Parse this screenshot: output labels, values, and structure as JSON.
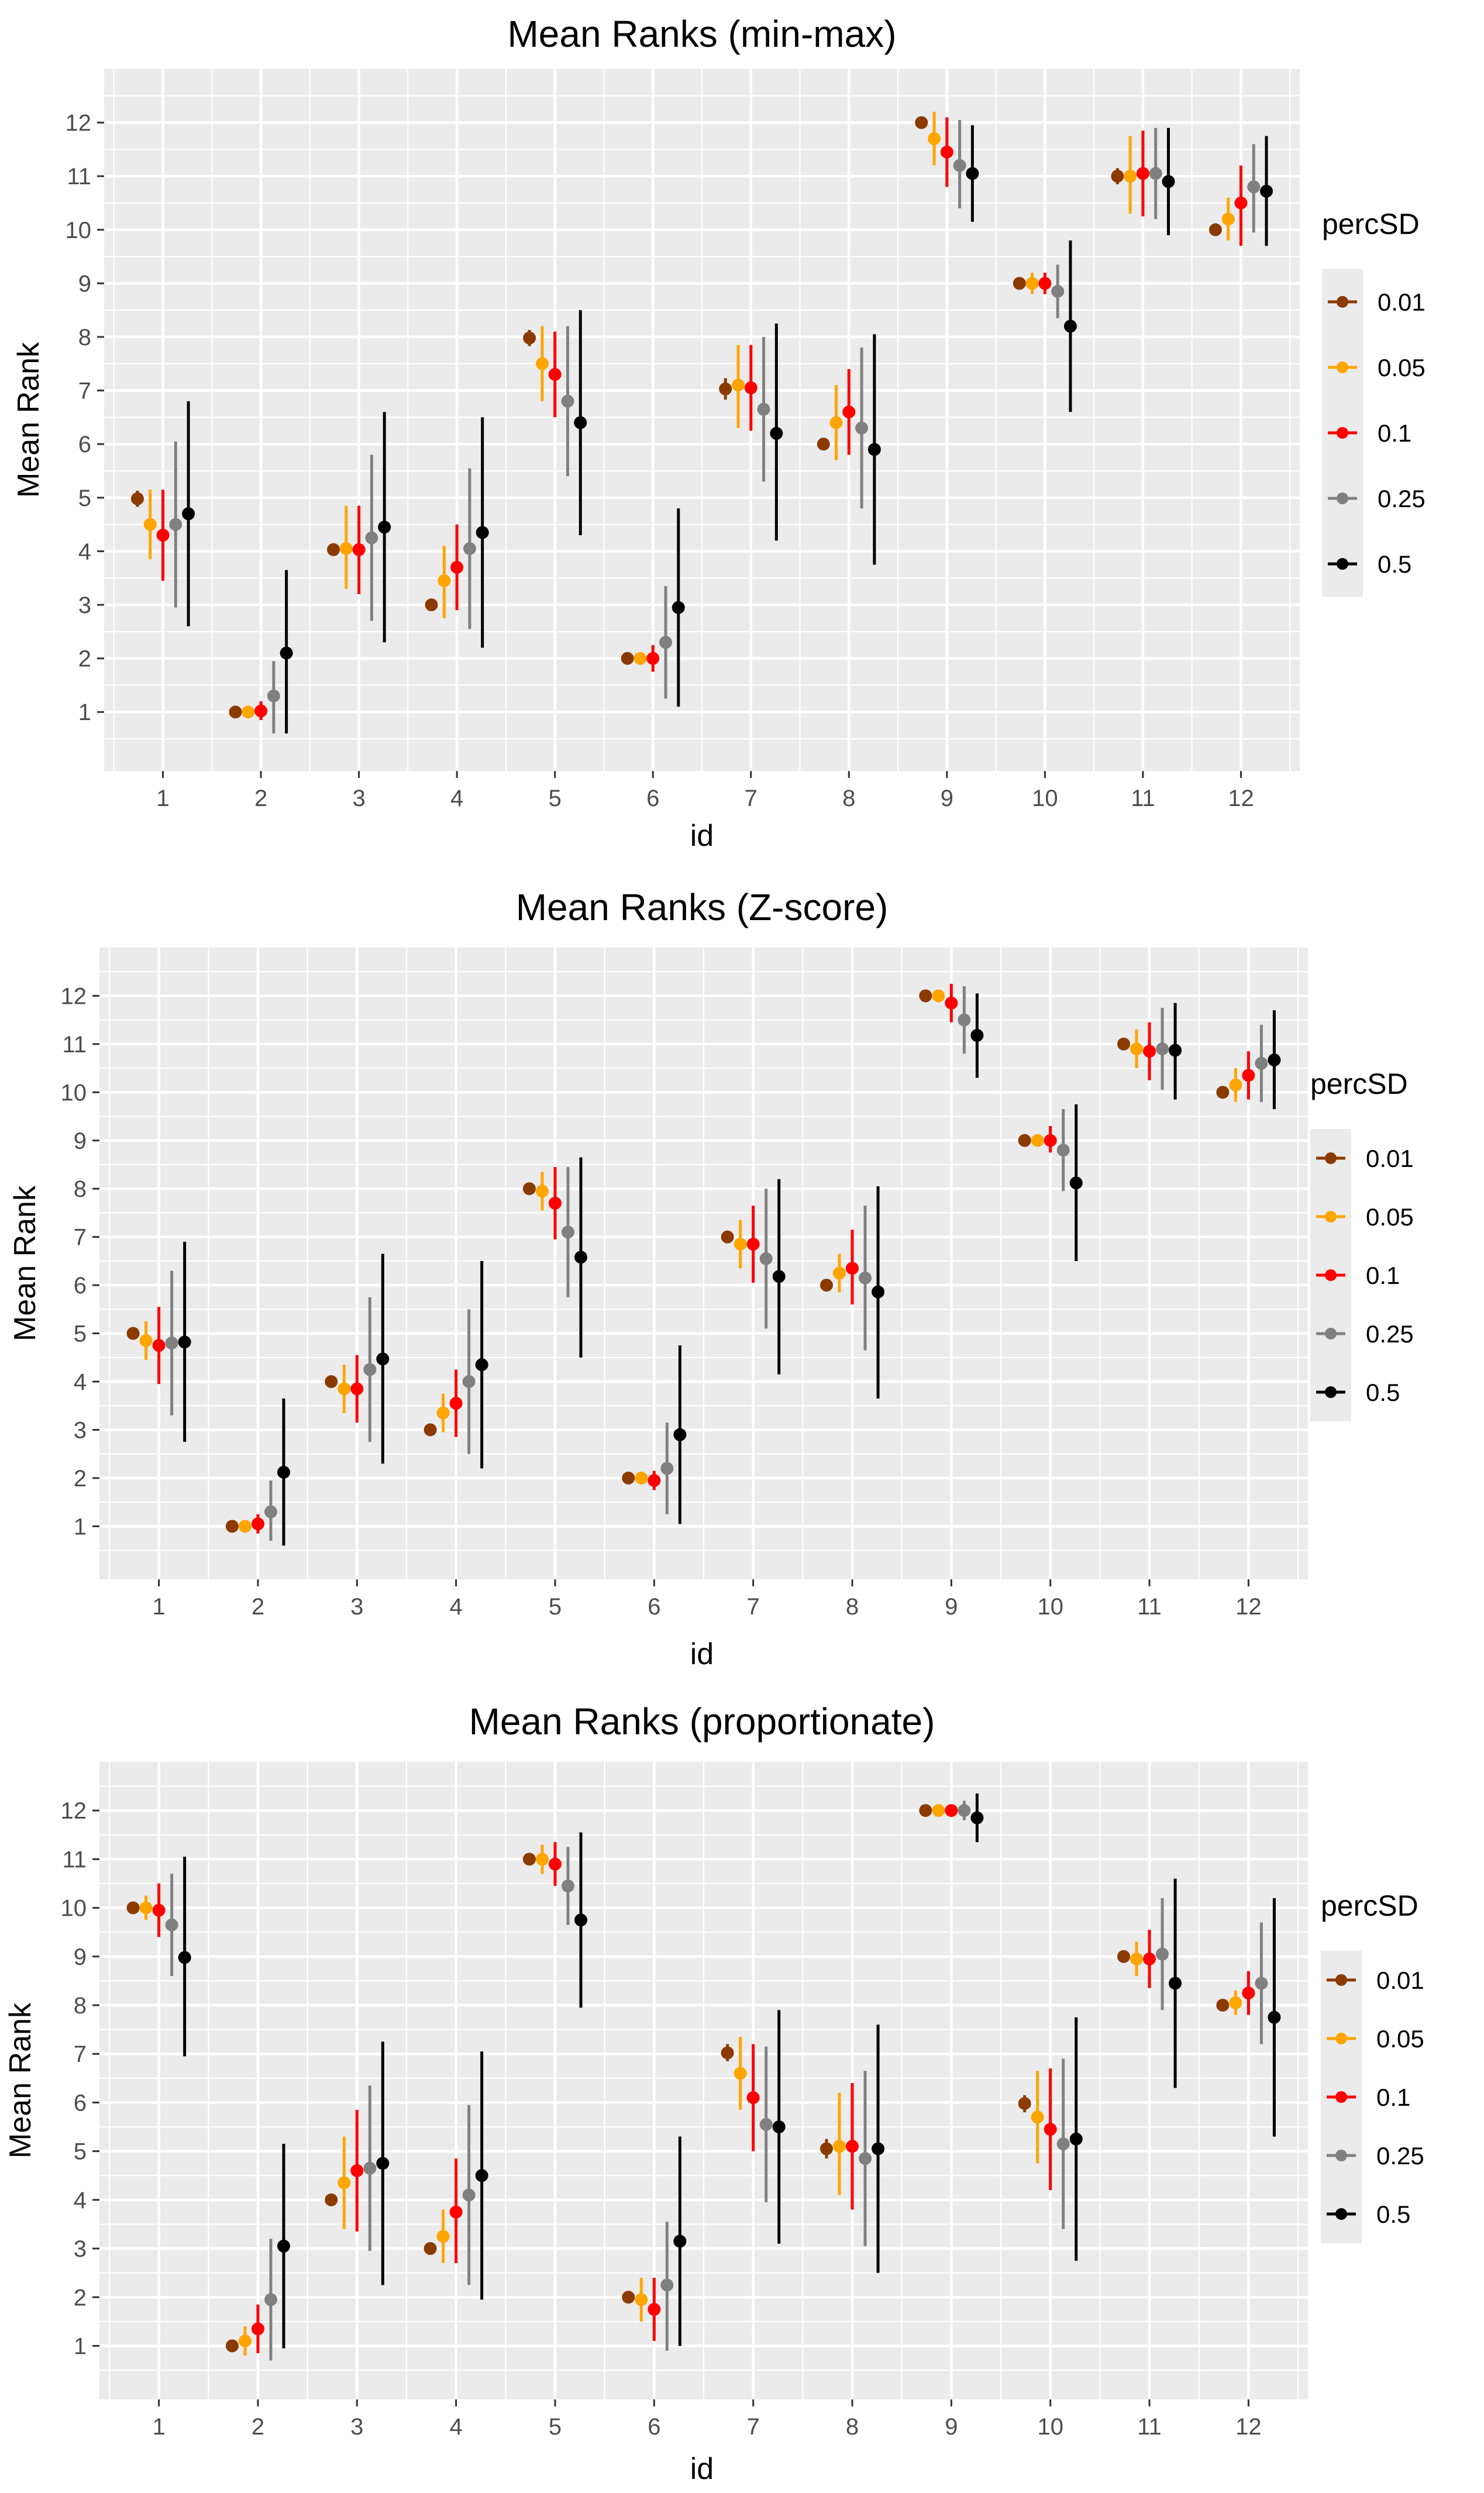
{
  "colors": {
    "panel_bg": "#EBEBEB",
    "grid": "#FFFFFF",
    "series": [
      "#8B3A00",
      "#FFA500",
      "#FF0000",
      "#808080",
      "#000000"
    ]
  },
  "chart_data": [
    {
      "type": "scatter",
      "title": "Mean Ranks (min-max)",
      "xlabel": "id",
      "ylabel": "Mean Rank",
      "categories": [
        "1",
        "2",
        "3",
        "4",
        "5",
        "6",
        "7",
        "8",
        "9",
        "10",
        "11",
        "12"
      ],
      "y_ticks": [
        "1",
        "2",
        "3",
        "4",
        "5",
        "6",
        "7",
        "8",
        "9",
        "10",
        "11",
        "12"
      ],
      "ylim": [
        -0.1,
        13.0
      ],
      "legend_title": "percSD",
      "legend_position": "right",
      "series": [
        {
          "name": "0.01",
          "values": [
            4.98,
            1.0,
            4.03,
            3.0,
            7.98,
            2.0,
            7.03,
            6.0,
            12.0,
            9.0,
            11.0,
            10.0
          ],
          "lower": [
            4.83,
            0.9,
            3.93,
            2.95,
            7.83,
            1.95,
            6.83,
            5.95,
            11.95,
            8.95,
            10.85,
            9.95
          ],
          "upper": [
            5.13,
            1.1,
            4.13,
            3.05,
            8.13,
            2.05,
            7.23,
            6.05,
            12.05,
            9.05,
            11.15,
            10.05
          ]
        },
        {
          "name": "0.05",
          "values": [
            4.5,
            1.0,
            4.05,
            3.45,
            7.5,
            2.0,
            7.1,
            6.4,
            11.7,
            9.0,
            11.0,
            10.2
          ],
          "lower": [
            3.85,
            0.95,
            3.3,
            2.75,
            6.8,
            1.9,
            6.3,
            5.7,
            11.2,
            8.8,
            10.3,
            9.8
          ],
          "upper": [
            5.15,
            1.1,
            4.85,
            4.1,
            8.2,
            2.1,
            7.85,
            7.1,
            12.2,
            9.2,
            11.75,
            10.6
          ]
        },
        {
          "name": "0.1",
          "values": [
            4.3,
            1.02,
            4.03,
            3.7,
            7.3,
            2.0,
            7.05,
            6.6,
            11.45,
            9.0,
            11.05,
            10.5
          ],
          "lower": [
            3.45,
            0.85,
            3.2,
            2.9,
            6.5,
            1.75,
            6.25,
            5.8,
            10.8,
            8.8,
            10.25,
            9.7
          ],
          "upper": [
            5.15,
            1.2,
            4.85,
            4.5,
            8.1,
            2.25,
            7.85,
            7.4,
            12.1,
            9.2,
            11.85,
            11.2
          ]
        },
        {
          "name": "0.25",
          "values": [
            4.5,
            1.3,
            4.25,
            4.05,
            6.8,
            2.3,
            6.65,
            6.3,
            11.2,
            8.85,
            11.05,
            10.8
          ],
          "lower": [
            2.95,
            0.6,
            2.7,
            2.55,
            5.4,
            1.25,
            5.3,
            4.8,
            10.4,
            8.35,
            10.2,
            9.95
          ],
          "upper": [
            6.05,
            1.95,
            5.8,
            5.55,
            8.2,
            3.35,
            8.0,
            7.8,
            12.05,
            9.35,
            11.9,
            11.6
          ]
        },
        {
          "name": "0.5",
          "values": [
            4.7,
            2.1,
            4.45,
            4.35,
            6.4,
            2.95,
            6.2,
            5.9,
            11.05,
            8.2,
            10.9,
            10.72
          ],
          "lower": [
            2.6,
            0.6,
            2.3,
            2.2,
            4.3,
            1.1,
            4.2,
            3.75,
            10.15,
            6.6,
            9.9,
            9.7
          ],
          "upper": [
            6.8,
            3.65,
            6.6,
            6.5,
            8.5,
            4.8,
            8.25,
            8.05,
            11.95,
            9.8,
            11.9,
            11.75
          ]
        }
      ]
    },
    {
      "type": "scatter",
      "title": "Mean Ranks (Z-score)",
      "xlabel": "id",
      "ylabel": "Mean Rank",
      "categories": [
        "1",
        "2",
        "3",
        "4",
        "5",
        "6",
        "7",
        "8",
        "9",
        "10",
        "11",
        "12"
      ],
      "y_ticks": [
        "1",
        "2",
        "3",
        "4",
        "5",
        "6",
        "7",
        "8",
        "9",
        "10",
        "11",
        "12"
      ],
      "ylim": [
        -0.1,
        13.0
      ],
      "legend_title": "percSD",
      "legend_position": "right",
      "series": [
        {
          "name": "0.01",
          "values": [
            5.0,
            1.0,
            4.0,
            3.0,
            8.0,
            2.0,
            7.0,
            6.0,
            12.0,
            9.0,
            11.0,
            10.0
          ],
          "lower": [
            4.95,
            0.95,
            3.95,
            2.95,
            7.95,
            1.95,
            6.95,
            5.95,
            11.95,
            8.95,
            10.95,
            9.95
          ],
          "upper": [
            5.05,
            1.05,
            4.05,
            3.05,
            8.05,
            2.05,
            7.05,
            6.05,
            12.05,
            9.05,
            11.05,
            10.05
          ]
        },
        {
          "name": "0.05",
          "values": [
            4.85,
            1.0,
            3.85,
            3.35,
            7.95,
            2.0,
            6.85,
            6.25,
            12.0,
            9.0,
            10.9,
            10.15
          ],
          "lower": [
            4.45,
            0.9,
            3.35,
            2.95,
            7.55,
            1.9,
            6.35,
            5.85,
            11.9,
            8.9,
            10.5,
            9.8
          ],
          "upper": [
            5.25,
            1.1,
            4.35,
            3.75,
            8.35,
            2.1,
            7.35,
            6.65,
            12.1,
            9.1,
            11.3,
            10.5
          ]
        },
        {
          "name": "0.1",
          "values": [
            4.75,
            1.05,
            3.85,
            3.55,
            7.7,
            1.95,
            6.85,
            6.35,
            11.85,
            9.0,
            10.85,
            10.35
          ],
          "lower": [
            3.95,
            0.85,
            3.15,
            2.85,
            6.95,
            1.75,
            6.05,
            5.6,
            11.45,
            8.75,
            10.25,
            9.85
          ],
          "upper": [
            5.55,
            1.25,
            4.55,
            4.25,
            8.45,
            2.15,
            7.65,
            7.15,
            12.25,
            9.3,
            11.45,
            10.85
          ]
        },
        {
          "name": "0.25",
          "values": [
            4.8,
            1.3,
            4.25,
            4.0,
            7.1,
            2.2,
            6.55,
            6.15,
            11.5,
            8.8,
            10.9,
            10.6
          ],
          "lower": [
            3.3,
            0.7,
            2.75,
            2.5,
            5.75,
            1.25,
            5.1,
            4.65,
            10.8,
            7.95,
            10.05,
            9.8
          ],
          "upper": [
            6.3,
            1.95,
            5.75,
            5.5,
            8.45,
            3.15,
            8.0,
            7.65,
            12.2,
            9.65,
            11.75,
            11.4
          ]
        },
        {
          "name": "0.5",
          "values": [
            4.82,
            2.12,
            4.47,
            4.35,
            6.58,
            2.9,
            6.18,
            5.86,
            11.18,
            8.12,
            10.87,
            10.67
          ],
          "lower": [
            2.75,
            0.6,
            2.3,
            2.2,
            4.5,
            1.05,
            4.15,
            3.65,
            10.3,
            6.5,
            9.85,
            9.65
          ],
          "upper": [
            6.9,
            3.65,
            6.65,
            6.5,
            8.65,
            4.75,
            8.2,
            8.05,
            12.05,
            9.75,
            11.85,
            11.7
          ]
        }
      ]
    },
    {
      "type": "scatter",
      "title": "Mean Ranks (proportionate)",
      "xlabel": "id",
      "ylabel": "Mean Rank",
      "categories": [
        "1",
        "2",
        "3",
        "4",
        "5",
        "6",
        "7",
        "8",
        "9",
        "10",
        "11",
        "12"
      ],
      "y_ticks": [
        "1",
        "2",
        "3",
        "4",
        "5",
        "6",
        "7",
        "8",
        "9",
        "10",
        "11",
        "12"
      ],
      "ylim": [
        -0.1,
        13.0
      ],
      "legend_title": "percSD",
      "legend_position": "right",
      "series": [
        {
          "name": "0.01",
          "values": [
            10.0,
            1.0,
            4.0,
            3.0,
            11.0,
            2.0,
            7.02,
            5.05,
            12.0,
            5.98,
            9.0,
            8.0
          ],
          "lower": [
            9.95,
            0.95,
            3.95,
            2.95,
            10.95,
            1.95,
            6.85,
            4.85,
            11.95,
            5.8,
            8.95,
            7.95
          ],
          "upper": [
            10.05,
            1.05,
            4.05,
            3.05,
            11.05,
            2.05,
            7.2,
            5.25,
            12.05,
            6.15,
            9.05,
            8.05
          ]
        },
        {
          "name": "0.05",
          "values": [
            10.0,
            1.1,
            4.35,
            3.25,
            11.0,
            1.95,
            6.6,
            5.1,
            12.0,
            5.7,
            8.95,
            8.05
          ],
          "lower": [
            9.75,
            0.8,
            3.4,
            2.7,
            10.7,
            1.5,
            5.85,
            4.1,
            11.9,
            4.75,
            8.6,
            7.8
          ],
          "upper": [
            10.25,
            1.4,
            5.3,
            3.8,
            11.3,
            2.4,
            7.35,
            6.2,
            12.1,
            6.65,
            9.3,
            8.3
          ]
        },
        {
          "name": "0.1",
          "values": [
            9.95,
            1.35,
            4.6,
            3.75,
            10.9,
            1.75,
            6.1,
            5.1,
            12.0,
            5.45,
            8.95,
            8.25
          ],
          "lower": [
            9.4,
            0.85,
            3.35,
            2.7,
            10.45,
            1.1,
            5.0,
            3.8,
            11.9,
            4.2,
            8.35,
            7.8
          ],
          "upper": [
            10.5,
            1.85,
            5.85,
            4.85,
            11.35,
            2.4,
            7.2,
            6.4,
            12.1,
            6.7,
            9.55,
            8.7
          ]
        },
        {
          "name": "0.25",
          "values": [
            9.65,
            1.95,
            4.65,
            4.1,
            10.45,
            2.25,
            5.55,
            4.85,
            12.0,
            5.15,
            9.05,
            8.45
          ],
          "lower": [
            8.6,
            0.7,
            2.95,
            2.25,
            9.65,
            0.9,
            3.95,
            3.05,
            11.8,
            3.4,
            7.9,
            7.2
          ],
          "upper": [
            10.7,
            3.2,
            6.35,
            5.95,
            11.25,
            3.55,
            7.15,
            6.65,
            12.2,
            6.9,
            10.2,
            9.7
          ]
        },
        {
          "name": "0.5",
          "values": [
            8.98,
            3.05,
            4.75,
            4.5,
            9.75,
            3.15,
            5.5,
            5.05,
            11.85,
            5.25,
            8.45,
            7.75
          ],
          "lower": [
            6.95,
            0.95,
            2.25,
            1.95,
            7.95,
            1.0,
            3.1,
            2.5,
            11.35,
            2.75,
            6.3,
            5.3
          ],
          "upper": [
            11.05,
            5.15,
            7.25,
            7.05,
            11.55,
            5.3,
            7.9,
            7.6,
            12.35,
            7.75,
            10.6,
            10.2
          ]
        }
      ]
    }
  ]
}
